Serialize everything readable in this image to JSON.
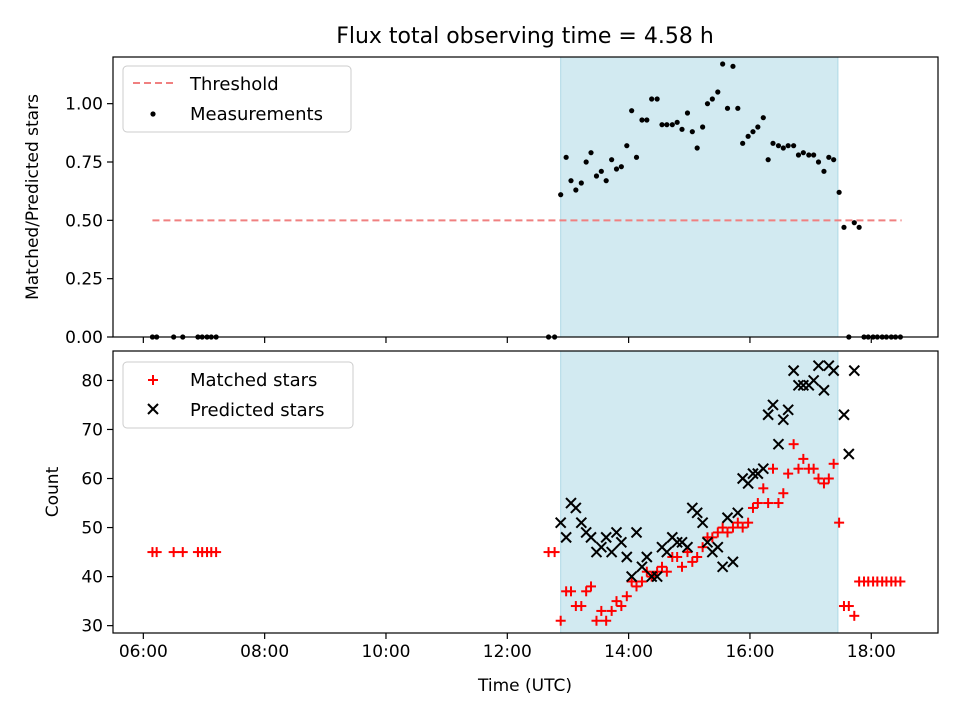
{
  "title": "Flux total observing time = 4.58 h",
  "colors": {
    "threshold": "#f08080",
    "measurements": "#000000",
    "matched": "#ff0000",
    "predicted": "#000000",
    "observing_span": "#add8e6"
  },
  "chart_data": [
    {
      "type": "scatter",
      "ylabel": "Matched/Predicted stars",
      "xlim": [
        5.5,
        19.1
      ],
      "ylim": [
        0,
        1.2
      ],
      "yticks": [
        0.0,
        0.25,
        0.5,
        0.75,
        1.0
      ],
      "ytick_labels": [
        "0.00",
        "0.25",
        "0.50",
        "0.75",
        "1.00"
      ],
      "observing_span": [
        12.88,
        17.45
      ],
      "legend": {
        "placement": "top-left",
        "threshold_label": "Threshold",
        "measurements_label": "Measurements"
      },
      "threshold": {
        "name": "Threshold",
        "value": 0.5,
        "x_range": [
          6.15,
          18.5
        ],
        "style": "dashed"
      },
      "series": [
        {
          "name": "Measurements",
          "points": [
            [
              6.15,
              0
            ],
            [
              6.22,
              0
            ],
            [
              6.5,
              0
            ],
            [
              6.65,
              0
            ],
            [
              6.9,
              0
            ],
            [
              6.97,
              0
            ],
            [
              7.05,
              0
            ],
            [
              7.12,
              0
            ],
            [
              7.2,
              0
            ],
            [
              12.68,
              0
            ],
            [
              12.78,
              0
            ],
            [
              12.88,
              0.61
            ],
            [
              12.97,
              0.77
            ],
            [
              13.05,
              0.67
            ],
            [
              13.13,
              0.63
            ],
            [
              13.22,
              0.66
            ],
            [
              13.3,
              0.75
            ],
            [
              13.38,
              0.79
            ],
            [
              13.47,
              0.69
            ],
            [
              13.55,
              0.71
            ],
            [
              13.63,
              0.67
            ],
            [
              13.72,
              0.76
            ],
            [
              13.8,
              0.72
            ],
            [
              13.88,
              0.73
            ],
            [
              13.97,
              0.82
            ],
            [
              14.05,
              0.97
            ],
            [
              14.13,
              0.77
            ],
            [
              14.22,
              0.93
            ],
            [
              14.3,
              0.93
            ],
            [
              14.38,
              1.02
            ],
            [
              14.47,
              1.02
            ],
            [
              14.55,
              0.91
            ],
            [
              14.63,
              0.91
            ],
            [
              14.72,
              0.91
            ],
            [
              14.8,
              0.92
            ],
            [
              14.88,
              0.89
            ],
            [
              14.97,
              0.96
            ],
            [
              15.05,
              0.88
            ],
            [
              15.13,
              0.81
            ],
            [
              15.22,
              0.9
            ],
            [
              15.3,
              1.0
            ],
            [
              15.38,
              1.02
            ],
            [
              15.47,
              1.05
            ],
            [
              15.55,
              1.17
            ],
            [
              15.63,
              0.98
            ],
            [
              15.72,
              1.16
            ],
            [
              15.8,
              0.98
            ],
            [
              15.88,
              0.83
            ],
            [
              15.97,
              0.86
            ],
            [
              16.05,
              0.88
            ],
            [
              16.13,
              0.9
            ],
            [
              16.22,
              0.94
            ],
            [
              16.3,
              0.76
            ],
            [
              16.38,
              0.83
            ],
            [
              16.47,
              0.82
            ],
            [
              16.55,
              0.81
            ],
            [
              16.63,
              0.82
            ],
            [
              16.72,
              0.82
            ],
            [
              16.8,
              0.78
            ],
            [
              16.88,
              0.79
            ],
            [
              16.97,
              0.78
            ],
            [
              17.05,
              0.78
            ],
            [
              17.13,
              0.75
            ],
            [
              17.22,
              0.71
            ],
            [
              17.3,
              0.77
            ],
            [
              17.38,
              0.76
            ],
            [
              17.47,
              0.62
            ],
            [
              17.55,
              0.47
            ],
            [
              17.63,
              0.0
            ],
            [
              17.72,
              0.49
            ],
            [
              17.8,
              0.47
            ],
            [
              17.88,
              0
            ],
            [
              17.95,
              0
            ],
            [
              18.03,
              0
            ],
            [
              18.1,
              0
            ],
            [
              18.18,
              0
            ],
            [
              18.25,
              0
            ],
            [
              18.33,
              0
            ],
            [
              18.4,
              0
            ],
            [
              18.48,
              0
            ]
          ]
        }
      ]
    },
    {
      "type": "scatter",
      "ylabel": "Count",
      "xlabel": "Time (UTC)",
      "xlim": [
        5.5,
        19.1
      ],
      "ylim": [
        28.5,
        86
      ],
      "yticks": [
        30,
        40,
        50,
        60,
        70,
        80
      ],
      "ytick_labels": [
        "30",
        "40",
        "50",
        "60",
        "70",
        "80"
      ],
      "xticks": [
        6,
        8,
        10,
        12,
        14,
        16,
        18
      ],
      "xtick_labels": [
        "06:00",
        "08:00",
        "10:00",
        "12:00",
        "14:00",
        "16:00",
        "18:00"
      ],
      "observing_span": [
        12.88,
        17.45
      ],
      "legend": {
        "placement": "top-left",
        "matched_label": "Matched stars",
        "predicted_label": "Predicted stars"
      },
      "series": [
        {
          "name": "Matched stars",
          "marker": "plus",
          "points": [
            [
              6.15,
              45
            ],
            [
              6.22,
              45
            ],
            [
              6.5,
              45
            ],
            [
              6.65,
              45
            ],
            [
              6.9,
              45
            ],
            [
              6.97,
              45
            ],
            [
              7.05,
              45
            ],
            [
              7.12,
              45
            ],
            [
              7.2,
              45
            ],
            [
              12.68,
              45
            ],
            [
              12.78,
              45
            ],
            [
              12.88,
              31
            ],
            [
              12.97,
              37
            ],
            [
              13.05,
              37
            ],
            [
              13.13,
              34
            ],
            [
              13.22,
              34
            ],
            [
              13.3,
              37
            ],
            [
              13.38,
              38
            ],
            [
              13.47,
              31
            ],
            [
              13.55,
              33
            ],
            [
              13.63,
              31
            ],
            [
              13.72,
              33
            ],
            [
              13.8,
              35
            ],
            [
              13.88,
              34
            ],
            [
              13.97,
              36
            ],
            [
              14.05,
              39
            ],
            [
              14.13,
              38
            ],
            [
              14.22,
              39
            ],
            [
              14.3,
              41
            ],
            [
              14.38,
              40
            ],
            [
              14.47,
              41
            ],
            [
              14.55,
              42
            ],
            [
              14.63,
              41
            ],
            [
              14.72,
              44
            ],
            [
              14.8,
              44
            ],
            [
              14.88,
              42
            ],
            [
              14.97,
              45
            ],
            [
              15.05,
              43
            ],
            [
              15.13,
              44
            ],
            [
              15.22,
              46
            ],
            [
              15.3,
              48
            ],
            [
              15.38,
              48
            ],
            [
              15.47,
              49
            ],
            [
              15.55,
              50
            ],
            [
              15.63,
              49
            ],
            [
              15.72,
              50
            ],
            [
              15.8,
              51
            ],
            [
              15.88,
              50
            ],
            [
              15.97,
              51
            ],
            [
              16.05,
              54
            ],
            [
              16.13,
              55
            ],
            [
              16.22,
              58
            ],
            [
              16.3,
              55
            ],
            [
              16.38,
              62
            ],
            [
              16.47,
              55
            ],
            [
              16.55,
              57
            ],
            [
              16.63,
              61
            ],
            [
              16.72,
              67
            ],
            [
              16.8,
              62
            ],
            [
              16.88,
              64
            ],
            [
              16.97,
              62
            ],
            [
              17.05,
              62
            ],
            [
              17.13,
              60
            ],
            [
              17.22,
              59
            ],
            [
              17.3,
              60
            ],
            [
              17.38,
              63
            ],
            [
              17.47,
              51
            ],
            [
              17.55,
              34
            ],
            [
              17.63,
              34
            ],
            [
              17.72,
              32
            ],
            [
              17.8,
              39
            ],
            [
              17.88,
              39
            ],
            [
              17.95,
              39
            ],
            [
              18.03,
              39
            ],
            [
              18.1,
              39
            ],
            [
              18.18,
              39
            ],
            [
              18.25,
              39
            ],
            [
              18.33,
              39
            ],
            [
              18.4,
              39
            ],
            [
              18.48,
              39
            ]
          ]
        },
        {
          "name": "Predicted stars",
          "marker": "x",
          "points": [
            [
              12.88,
              51
            ],
            [
              12.97,
              48
            ],
            [
              13.05,
              55
            ],
            [
              13.13,
              54
            ],
            [
              13.22,
              51
            ],
            [
              13.3,
              49
            ],
            [
              13.38,
              48
            ],
            [
              13.47,
              45
            ],
            [
              13.55,
              46
            ],
            [
              13.63,
              48
            ],
            [
              13.72,
              45
            ],
            [
              13.8,
              49
            ],
            [
              13.88,
              47
            ],
            [
              13.97,
              44
            ],
            [
              14.05,
              40
            ],
            [
              14.13,
              49
            ],
            [
              14.22,
              42
            ],
            [
              14.3,
              44
            ],
            [
              14.38,
              40
            ],
            [
              14.47,
              40
            ],
            [
              14.55,
              46
            ],
            [
              14.63,
              45
            ],
            [
              14.72,
              48
            ],
            [
              14.8,
              47
            ],
            [
              14.88,
              47
            ],
            [
              14.97,
              46
            ],
            [
              15.05,
              54
            ],
            [
              15.13,
              53
            ],
            [
              15.22,
              51
            ],
            [
              15.3,
              47
            ],
            [
              15.38,
              45
            ],
            [
              15.47,
              46
            ],
            [
              15.55,
              42
            ],
            [
              15.63,
              52
            ],
            [
              15.72,
              43
            ],
            [
              15.8,
              53
            ],
            [
              15.88,
              60
            ],
            [
              15.97,
              59
            ],
            [
              16.05,
              61
            ],
            [
              16.13,
              61
            ],
            [
              16.22,
              62
            ],
            [
              16.3,
              73
            ],
            [
              16.38,
              75
            ],
            [
              16.47,
              67
            ],
            [
              16.55,
              72
            ],
            [
              16.63,
              74
            ],
            [
              16.72,
              82
            ],
            [
              16.8,
              79
            ],
            [
              16.88,
              79
            ],
            [
              16.97,
              79
            ],
            [
              17.05,
              80
            ],
            [
              17.13,
              83
            ],
            [
              17.22,
              78
            ],
            [
              17.3,
              83
            ],
            [
              17.38,
              82
            ],
            [
              17.55,
              73
            ],
            [
              17.63,
              65
            ],
            [
              17.72,
              82
            ]
          ]
        }
      ]
    }
  ]
}
